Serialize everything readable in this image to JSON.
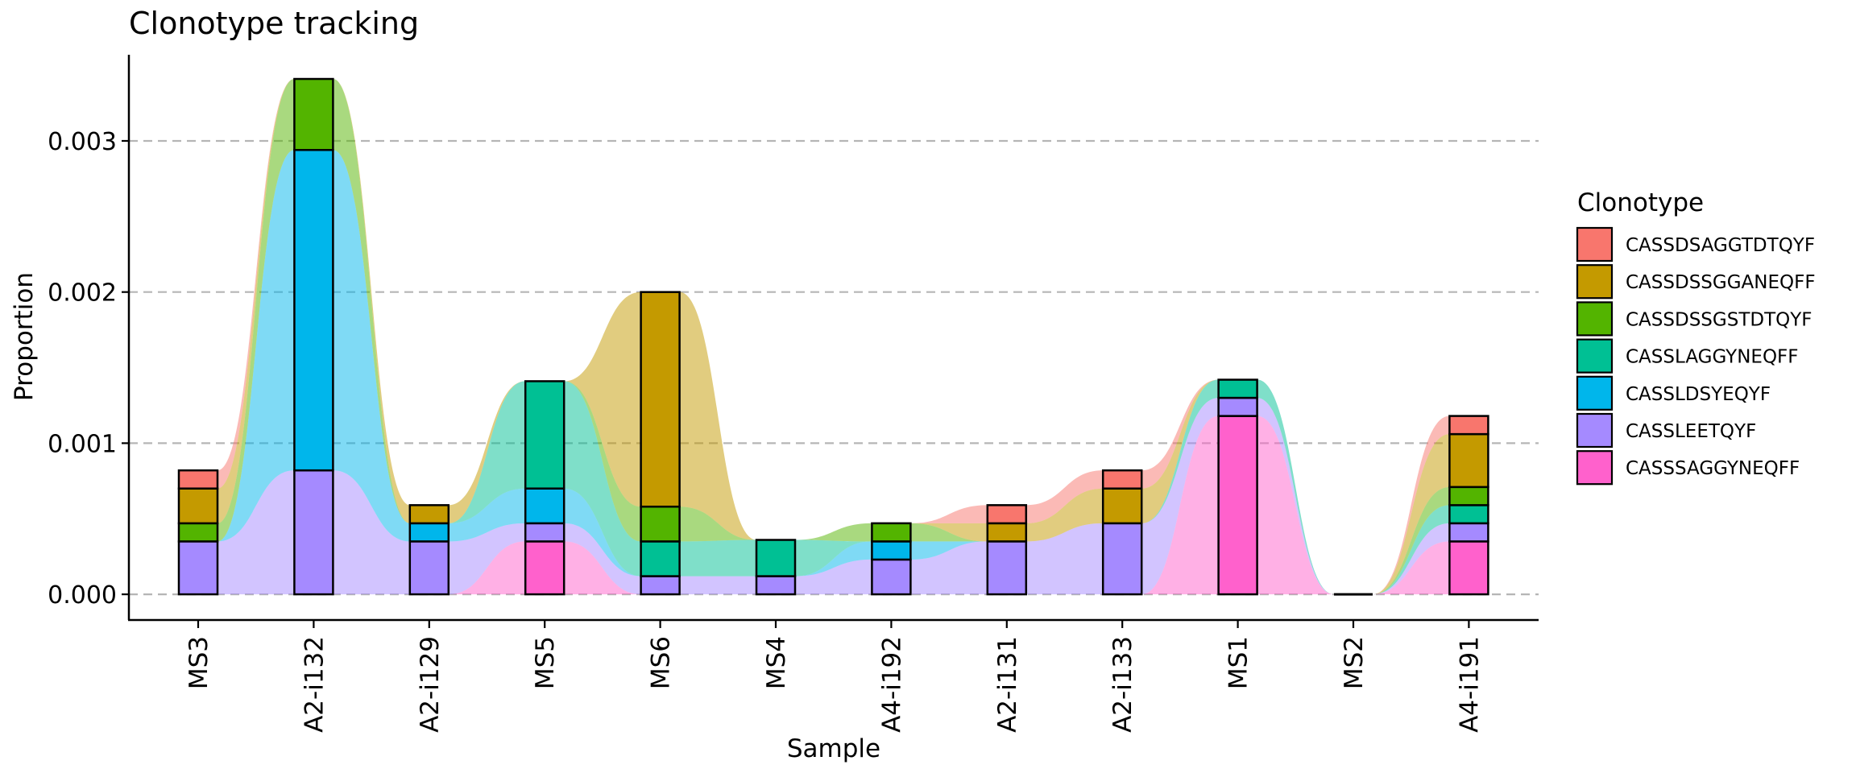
{
  "chart_data": {
    "type": "bar",
    "title": "Clonotype tracking",
    "xlabel": "Sample",
    "ylabel": "Proportion",
    "ylim": [
      -0.00017,
      0.00357
    ],
    "yticks": [
      0.0,
      0.001,
      0.002,
      0.003
    ],
    "ytick_labels": [
      "0.000",
      "0.001",
      "0.002",
      "0.003"
    ],
    "grid": "horizontal dashed",
    "legend": {
      "title": "Clonotype",
      "position": "right"
    },
    "categories": [
      "MS3",
      "A2-i132",
      "A2-i129",
      "MS5",
      "MS6",
      "MS4",
      "A4-i192",
      "A2-i131",
      "A2-i133",
      "MS1",
      "MS2",
      "A4-i191"
    ],
    "series": [
      {
        "name": "CASSSAGGYNEQFF",
        "color": "#FF61CC",
        "values": [
          0,
          0,
          0,
          0.00035,
          0,
          0,
          0,
          0,
          0,
          0.00118,
          0,
          0.00035
        ]
      },
      {
        "name": "CASSLEETQYF",
        "color": "#A58AFF",
        "values": [
          0.00035,
          0.00082,
          0.00035,
          0.00012,
          0.00012,
          0.00012,
          0.00023,
          0.00035,
          0.00047,
          0.00012,
          0,
          0.00012
        ]
      },
      {
        "name": "CASSLDSYEQYF",
        "color": "#00B6EB",
        "values": [
          0,
          0.00212,
          0.00012,
          0.00023,
          0,
          0,
          0.00012,
          0,
          0,
          0,
          0,
          0
        ]
      },
      {
        "name": "CASSLAGGYNEQFF",
        "color": "#00C094",
        "values": [
          0,
          0,
          0,
          0.00071,
          0.00023,
          0.00024,
          0,
          0,
          0,
          0.00012,
          0,
          0.00012
        ]
      },
      {
        "name": "CASSDSSGSTDTQYF",
        "color": "#53B400",
        "values": [
          0.00012,
          0.00047,
          0,
          0,
          0.00023,
          0,
          0.00012,
          0,
          0,
          0,
          0,
          0.00012
        ]
      },
      {
        "name": "CASSDSSGGANEQFF",
        "color": "#C49A00",
        "values": [
          0.00023,
          0,
          0.00012,
          0,
          0.00142,
          0,
          0,
          0.00012,
          0.00023,
          0,
          0,
          0.00035
        ]
      },
      {
        "name": "CASSDSAGGTDTQYF",
        "color": "#F8766D",
        "values": [
          0.00012,
          0,
          0,
          0,
          0,
          0,
          0,
          0.00012,
          0.00012,
          0,
          0,
          0.00012
        ]
      }
    ]
  }
}
